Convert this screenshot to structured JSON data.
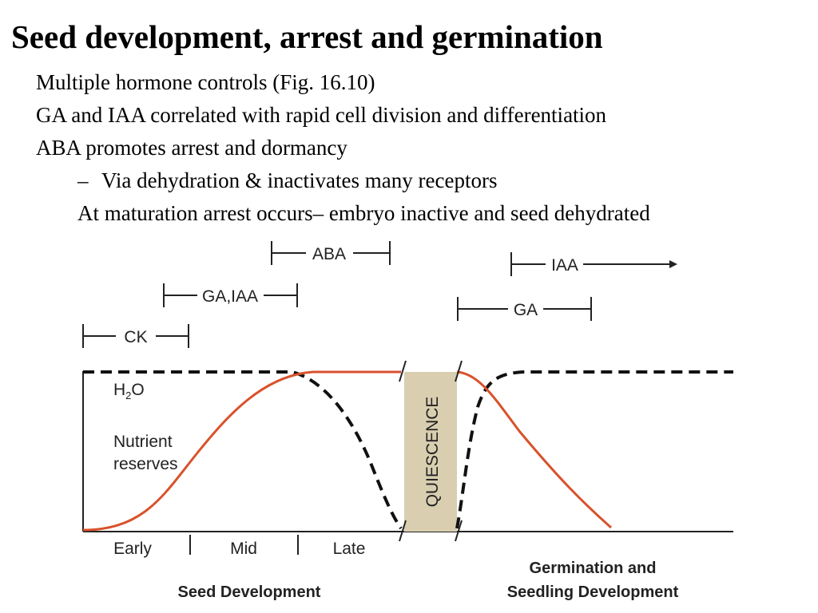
{
  "slide": {
    "title": "Seed development, arrest and germination",
    "bullets": [
      "Multiple hormone controls (Fig. 16.10)",
      "GA and IAA correlated with rapid cell division and differentiation",
      "ABA promotes arrest and dormancy"
    ],
    "sub_bullet_marker": "–",
    "sub_bullets": [
      "Via dehydration & inactivates many receptors",
      "At maturation arrest occurs– embryo inactive and seed dehydrated"
    ]
  },
  "figure": {
    "hormones": {
      "ck": "CK",
      "ga_iaa": "GA,IAA",
      "aba": "ABA",
      "iaa": "IAA",
      "ga": "GA"
    },
    "curves": {
      "water_h": "H",
      "water_sub": "2",
      "water_o": "O",
      "nutrient_line1": "Nutrient",
      "nutrient_line2": "reserves"
    },
    "quiescence": "QUIESCENCE",
    "stages": [
      "Early",
      "Mid",
      "Late"
    ],
    "phases": {
      "seed": "Seed Development",
      "germ_line1": "Germination and",
      "germ_line2": "Seedling Development"
    },
    "colors": {
      "nutrient_curve": "#d9512c",
      "water_curve": "#111111",
      "quiescence_band": "#d9cfb0"
    }
  }
}
